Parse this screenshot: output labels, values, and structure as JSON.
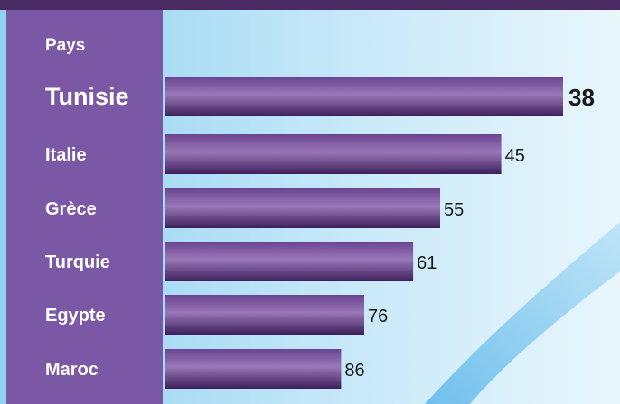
{
  "chart_data": {
    "type": "bar",
    "orientation": "horizontal",
    "category_header": "Pays",
    "categories": [
      "Tunisie",
      "Italie",
      "Grèce",
      "Turquie",
      "Egypte",
      "Maroc"
    ],
    "values": [
      38,
      45,
      55,
      61,
      76,
      86
    ],
    "highlight": "Tunisie",
    "bar_length": "inversely proportional to value (lower value = longer bar)",
    "grid": false,
    "legend": "none"
  },
  "colors": {
    "top_bar": "#4a2a63",
    "sidebar": "#7b58a6",
    "bar_light": "#9a77b8",
    "bar_dark": "#3c1f5a",
    "background_left": "#8fd1f1",
    "background_right": "#e9f6fc",
    "swoosh": "#7ec8ee"
  }
}
